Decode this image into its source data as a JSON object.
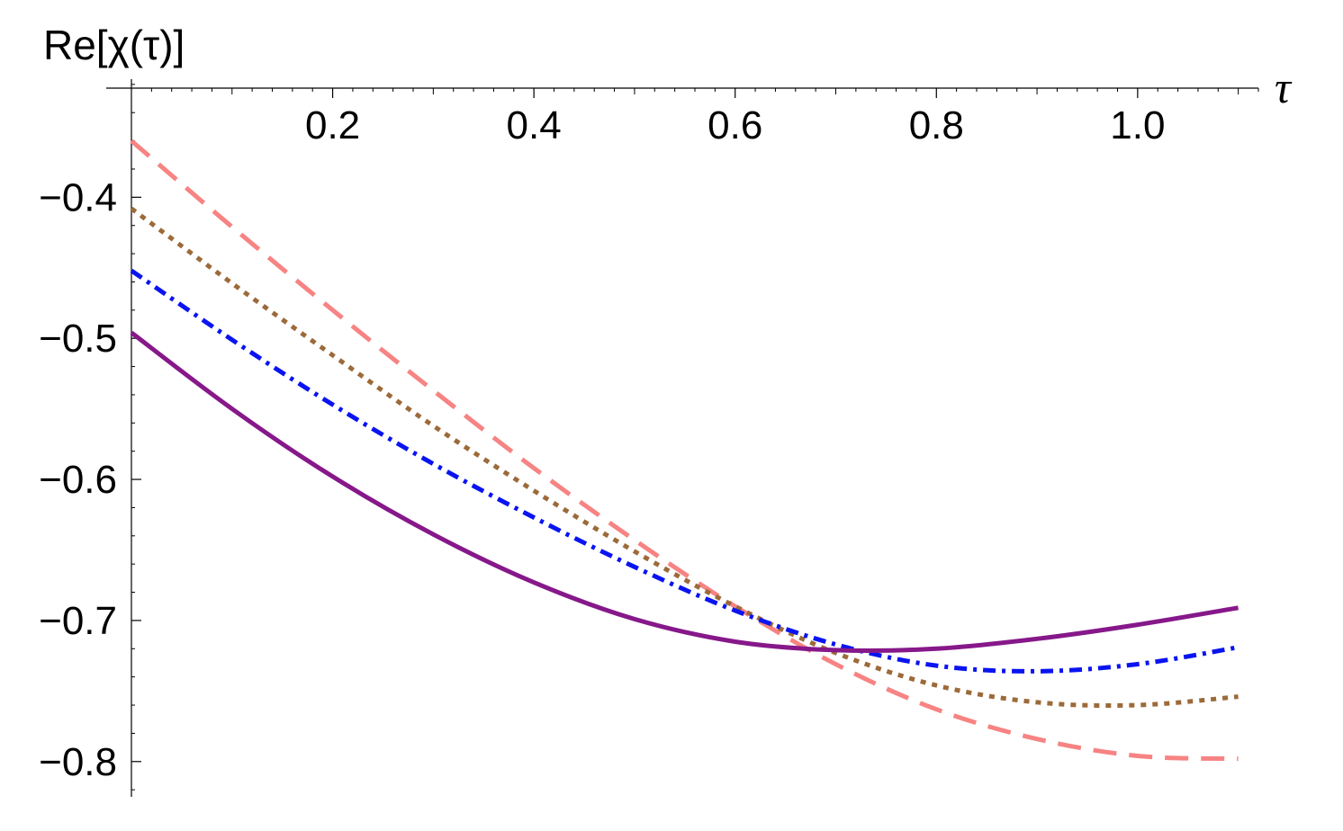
{
  "chart_data": {
    "type": "line",
    "xlabel": "τ",
    "ylabel": "Re[χ(τ)]",
    "xlim": [
      0.0,
      1.12
    ],
    "ylim": [
      -0.825,
      -0.315
    ],
    "x_ticks": [
      {
        "value": 0.2,
        "label": "0.2"
      },
      {
        "value": 0.4,
        "label": "0.4"
      },
      {
        "value": 0.6,
        "label": "0.6"
      },
      {
        "value": 0.8,
        "label": "0.8"
      },
      {
        "value": 1.0,
        "label": "1.0"
      }
    ],
    "y_ticks": [
      {
        "value": -0.4,
        "label": "−0.4"
      },
      {
        "value": -0.5,
        "label": "−0.5"
      },
      {
        "value": -0.6,
        "label": "−0.6"
      },
      {
        "value": -0.7,
        "label": "−0.7"
      },
      {
        "value": -0.8,
        "label": "−0.8"
      }
    ],
    "grid": false,
    "series": [
      {
        "color": "#f78383",
        "dash": "dashed",
        "x": [
          0.0,
          0.1,
          0.2,
          0.3,
          0.4,
          0.5,
          0.6,
          0.7,
          0.8,
          0.9,
          1.0,
          1.1
        ],
        "y": [
          -0.36,
          -0.421,
          -0.48,
          -0.537,
          -0.592,
          -0.643,
          -0.69,
          -0.731,
          -0.763,
          -0.784,
          -0.796,
          -0.798
        ]
      },
      {
        "color": "#9c6a3a",
        "dash": "dotted",
        "x": [
          0.0,
          0.1,
          0.2,
          0.3,
          0.4,
          0.5,
          0.6,
          0.7,
          0.8,
          0.9,
          1.0,
          1.1
        ],
        "y": [
          -0.408,
          -0.461,
          -0.512,
          -0.562,
          -0.608,
          -0.651,
          -0.69,
          -0.723,
          -0.746,
          -0.758,
          -0.76,
          -0.754
        ]
      },
      {
        "color": "#0a14f0",
        "dash": "dashdot",
        "x": [
          0.0,
          0.1,
          0.2,
          0.3,
          0.4,
          0.5,
          0.6,
          0.7,
          0.8,
          0.9,
          1.0,
          1.1
        ],
        "y": [
          -0.452,
          -0.501,
          -0.547,
          -0.589,
          -0.627,
          -0.662,
          -0.693,
          -0.717,
          -0.732,
          -0.736,
          -0.731,
          -0.719
        ]
      },
      {
        "color": "#86188a",
        "dash": "solid",
        "x": [
          0.0,
          0.1,
          0.2,
          0.3,
          0.4,
          0.5,
          0.6,
          0.7,
          0.8,
          0.9,
          1.0,
          1.1
        ],
        "y": [
          -0.496,
          -0.55,
          -0.598,
          -0.639,
          -0.673,
          -0.699,
          -0.715,
          -0.721,
          -0.72,
          -0.713,
          -0.703,
          -0.691
        ]
      }
    ]
  }
}
